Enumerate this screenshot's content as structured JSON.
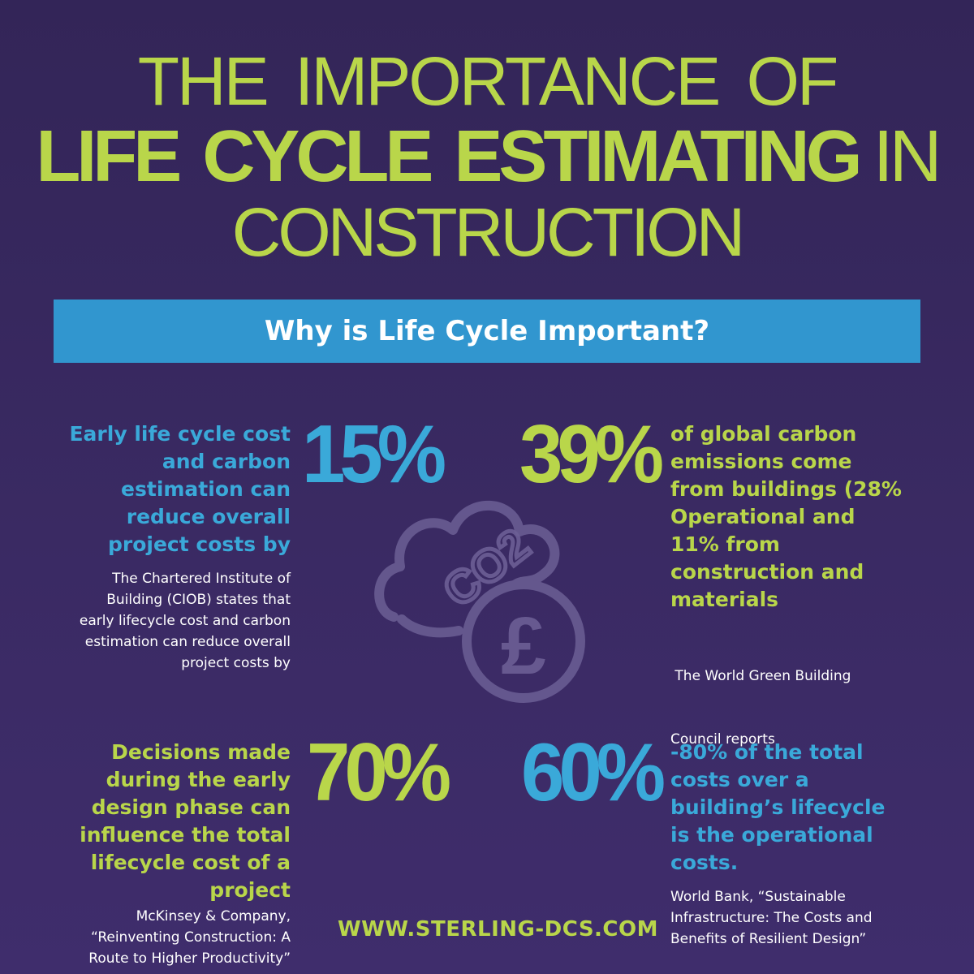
{
  "title": {
    "line1": "THE IMPORTANCE OF",
    "line2_bold": "LIFE CYCLE ESTIMATING",
    "line2_light": "IN",
    "line3": "CONSTRUCTION"
  },
  "banner": {
    "heading": "Why is Life Cycle Important?"
  },
  "stats": [
    {
      "value": "15%",
      "text_lines": [
        "Early life cycle cost",
        "and carbon",
        "estimation can",
        "reduce overall",
        "project costs by"
      ],
      "source_lines": [
        "The Chartered Institute of",
        "Building (CIOB) states that",
        "early lifecycle cost and carbon",
        "estimation can reduce overall",
        "project costs by"
      ]
    },
    {
      "value": "39%",
      "text_lines": [
        "of global carbon",
        "emissions come",
        "from buildings (28%",
        "Operational and",
        "11% from",
        "construction and",
        "materials"
      ],
      "source_lines": [
        " The World Green Building",
        "Council reports"
      ]
    },
    {
      "value": "70%",
      "text_lines": [
        "Decisions made",
        "during the early",
        "design phase can",
        "influence the total",
        "lifecycle cost of a",
        "project"
      ],
      "source_lines": [
        "McKinsey & Company,",
        "“Reinventing Construction: A",
        "Route to Higher Productivity”"
      ]
    },
    {
      "value": "60%",
      "text_lines": [
        "-80% of the total",
        "costs over a",
        "building’s lifecycle",
        "is the operational",
        "costs."
      ],
      "source_lines": [
        "World Bank, “Sustainable",
        "Infrastructure: The Costs and",
        "Benefits of Resilient Design”"
      ]
    }
  ],
  "center_icon": {
    "name": "co2-cloud-pound-icon",
    "co2_label": "CO2",
    "currency_symbol": "£"
  },
  "footer": {
    "url": "WWW.STERLING-DCS.COM"
  },
  "colors": {
    "background": "#3a2a63",
    "accent_green": "#b9d64a",
    "accent_blue": "#3aa9d9",
    "banner": "#3196cf",
    "text_white": "#ffffff"
  }
}
